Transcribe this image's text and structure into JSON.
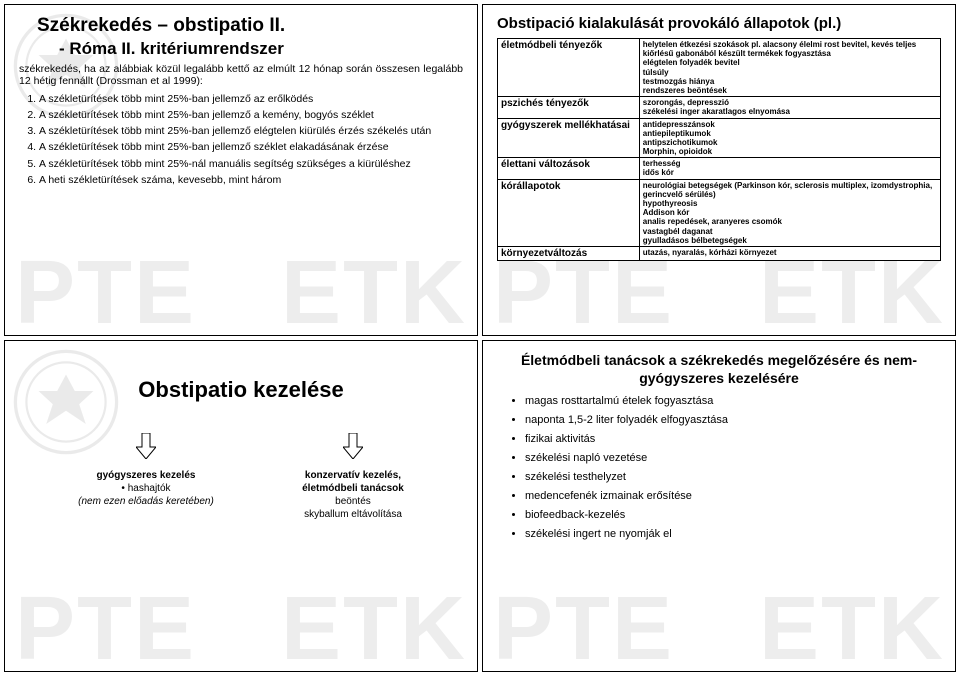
{
  "colors": {
    "text": "#000000",
    "border": "#000000",
    "watermark": "rgba(0,0,0,0.07)",
    "background": "#ffffff"
  },
  "watermark_left": "PTE",
  "watermark_right": "ETK",
  "q1": {
    "title": "Székrekedés – obstipatio II.",
    "subtitle": "- Róma II. kritériumrendszer",
    "intro": "székrekedés, ha az alábbiak közül legalább kettő az elmúlt 12 hónap során összesen legalább 12 hétig fennállt (Drossman et al 1999):",
    "items": [
      "A székletürítések több mint 25%-ban jellemző az erőlködés",
      "A székletürítések több mint 25%-ban jellemző a kemény, bogyós széklet",
      "A székletürítések több mint 25%-ban jellemző elégtelen kiürülés érzés székelés után",
      "A székletürítések több mint 25%-ban jellemző széklet elakadásának érzése",
      "A székletürítések több mint 25%-nál manuális segítség szükséges a kiürüléshez",
      "A heti székletürítések száma, kevesebb, mint három"
    ]
  },
  "q2": {
    "title": "Obstipació kialakulását provokáló állapotok (pl.)",
    "rows": [
      {
        "cat": "életmódbeli tényezők",
        "det": "helytelen étkezési szokások pl. alacsony élelmi rost bevitel, kevés teljes kiőrlésű gabonából készült termékek fogyasztása\nelégtelen folyadék bevitel\ntúlsúly\ntestmozgás hiánya\nrendszeres beöntések"
      },
      {
        "cat": "pszichés tényezők",
        "det": "szorongás, depresszió\nszékelési inger akaratlagos elnyomása"
      },
      {
        "cat": "gyógyszerek mellékhatásai",
        "det": "antidepresszánsok\nantiepileptikumok\nantipszichotikumok\nMorphin, opioidok"
      },
      {
        "cat": "élettani változások",
        "det": "terhesség\nidős kór"
      },
      {
        "cat": "kórállapotok",
        "det": "neurológiai betegségek (Parkinson kór, sclerosis multiplex, izomdystrophia, gerincvelő sérülés)\nhypothyreosis\nAddison kór\nanalis repedések, aranyeres csomók\nvastagbél daganat\ngyulladásos bélbetegségek"
      },
      {
        "cat": "környezetváltozás",
        "det": "utazás, nyaralás, kórházi környezet"
      }
    ]
  },
  "q3": {
    "title": "Obstipatio kezelése",
    "col1": "gyógyszeres kezelés\n• hashajtók\n(nem ezen előadás keretében)",
    "col2": "konzervatív kezelés,\néletmódbeli tanácsok\nbeöntés\nskyballum eltávolítása"
  },
  "q4": {
    "title": "Életmódbeli tanácsok a székrekedés megelőzésére és nem-gyógyszeres kezelésére",
    "items": [
      "magas rosttartalmú ételek fogyasztása",
      "naponta 1,5-2 liter folyadék elfogyasztása",
      "fizikai aktivitás",
      "székelési napló vezetése",
      "székelési testhelyzet",
      "medencefenék izmainak erősítése",
      "biofeedback-kezelés",
      "székelési ingert ne nyomják el"
    ]
  }
}
